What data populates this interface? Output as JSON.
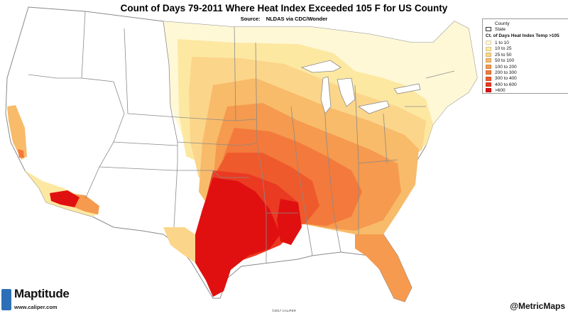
{
  "title": "Count of Days 79-2011 Where Heat Index Exceeded 105 F for US County",
  "source_label": "Source:",
  "source_value": "NLDAS via CDC/Wonder",
  "legend": {
    "county_label": "County",
    "state_label": "State",
    "theme_label": "Ct. of Days Heat Index Temp >105",
    "classes": [
      {
        "label": "1 to 10",
        "color": "#fff8d6"
      },
      {
        "label": "10 to 25",
        "color": "#fde8a2"
      },
      {
        "label": "25 to 50",
        "color": "#fbd58a"
      },
      {
        "label": "50 to 100",
        "color": "#f8bb6a"
      },
      {
        "label": "100 to 200",
        "color": "#f59a4e"
      },
      {
        "label": "200 to 300",
        "color": "#f37a3c"
      },
      {
        "label": "300 to 400",
        "color": "#ef5a2c"
      },
      {
        "label": "400 to 600",
        "color": "#ea3a22"
      },
      {
        "label": ">600",
        "color": "#e01010"
      }
    ]
  },
  "branding": {
    "logo_name": "Maptitude",
    "logo_url": "www.caliper.com",
    "handle": "@MetricMaps",
    "copyright": "©2017 CALIPER"
  },
  "colors": {
    "land_none": "#ffffff",
    "state_border": "#888888",
    "county_border": "#d8c9d0"
  }
}
